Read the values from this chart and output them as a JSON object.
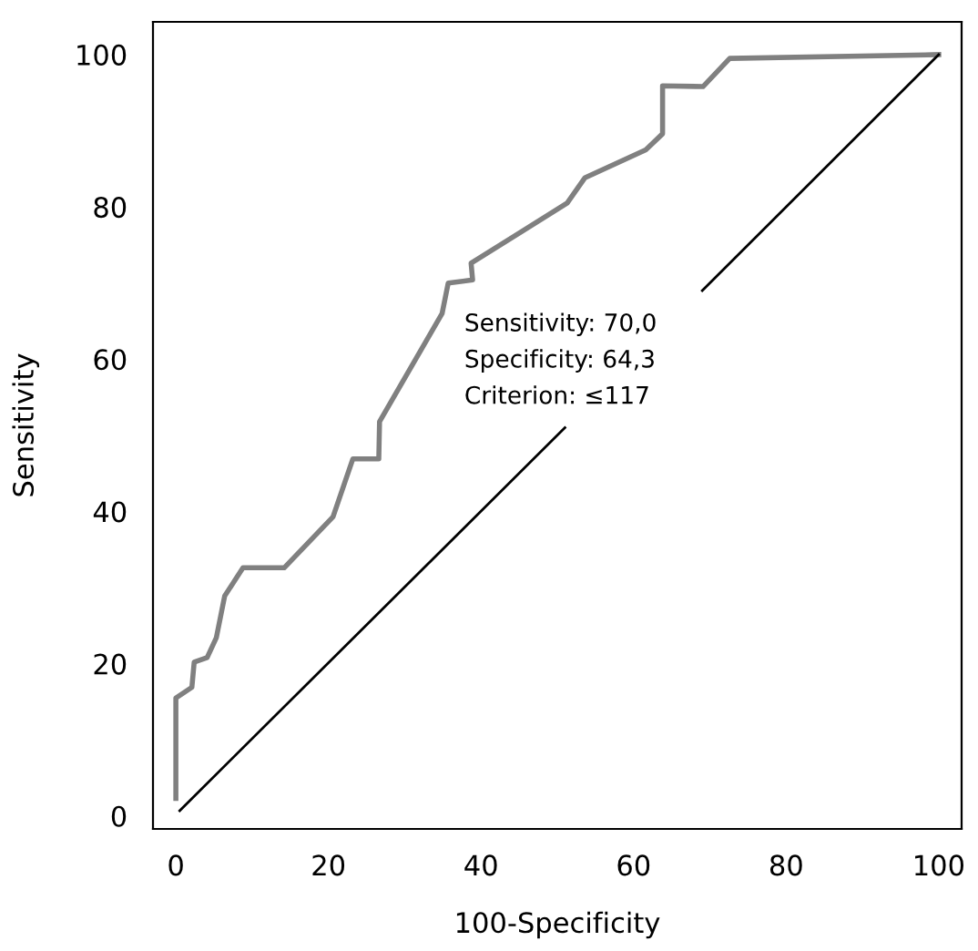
{
  "chart_data": {
    "type": "line",
    "xlabel": "100-Specificity",
    "ylabel": "Sensitivity",
    "xlim": [
      -3,
      103
    ],
    "ylim": [
      -1.7,
      104.3
    ],
    "xticks": [
      0,
      20,
      40,
      60,
      80,
      100
    ],
    "yticks": [
      0,
      20,
      40,
      60,
      80,
      100
    ],
    "grid": false,
    "legend": false,
    "marker": "none",
    "series": [
      {
        "color": "#808080",
        "x": [
          0,
          0,
          2.1,
          2.4,
          4.1,
          5.3,
          6.4,
          8.8,
          14.2,
          20.6,
          23.2,
          26.6,
          26.7,
          34.9,
          35.7,
          38.9,
          38.7,
          51.3,
          53.6,
          61.6,
          63.8,
          63.8,
          69.1,
          72.6,
          100
        ],
        "values": [
          2.3,
          15.5,
          16.9,
          20.2,
          20.8,
          23.4,
          28.9,
          32.6,
          32.6,
          39.3,
          46.9,
          46.9,
          51.8,
          66,
          70,
          70.4,
          72.6,
          80.5,
          83.8,
          87.5,
          89.6,
          95.9,
          95.8,
          99.5,
          100
        ]
      },
      {
        "color": "#000000",
        "x": [
          0.5,
          51,
          60,
          69,
          100
        ],
        "values": [
          0.7,
          51,
          null,
          69,
          100
        ]
      }
    ],
    "annotations": [
      "Sensitivity: 70,0",
      "Specificity: 64,3",
      "Criterion: ≤117"
    ]
  }
}
